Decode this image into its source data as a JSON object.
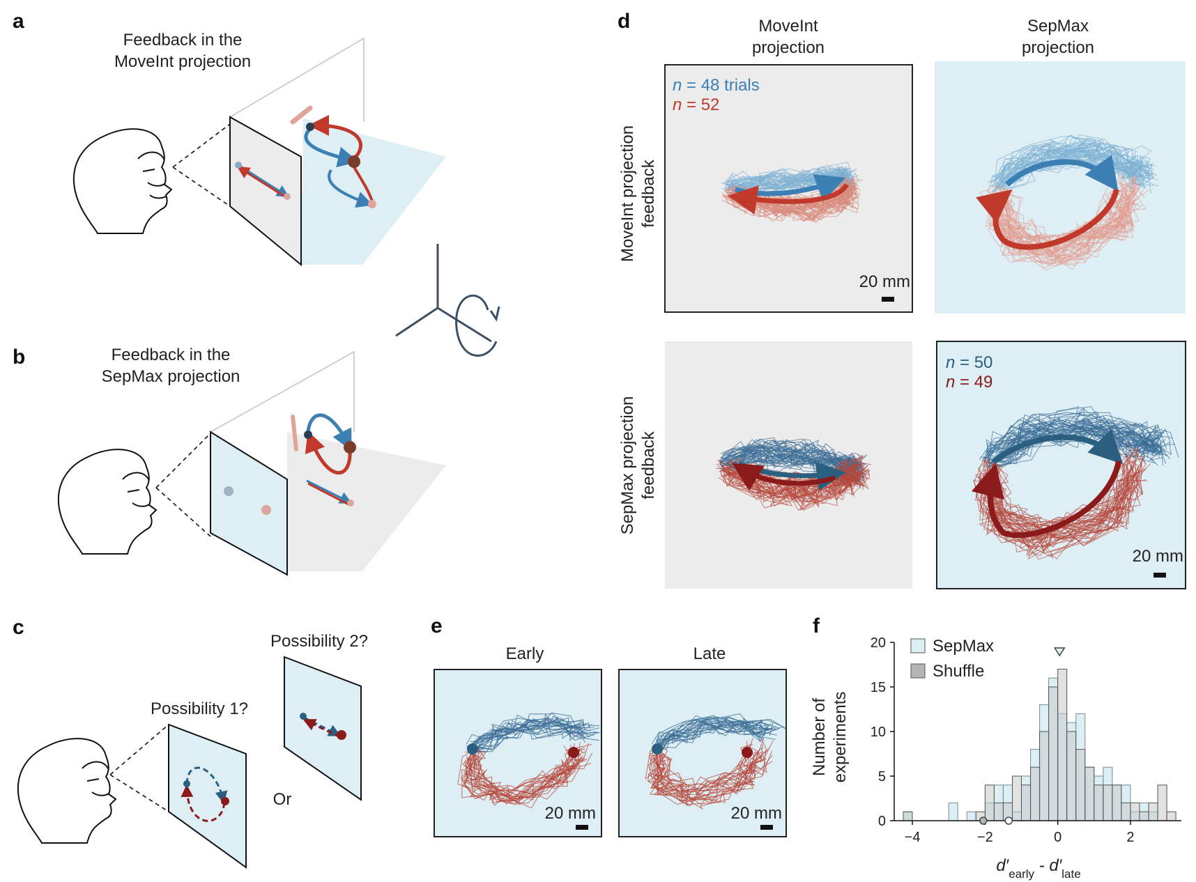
{
  "panels": {
    "a": {
      "label": "a",
      "title_line1": "Feedback in the",
      "title_line2": "MoveInt projection"
    },
    "b": {
      "label": "b",
      "title_line1": "Feedback in the",
      "title_line2": "SepMax projection"
    },
    "c": {
      "label": "c",
      "possibility1": "Possibility 1?",
      "possibility2": "Possibility 2?",
      "or": "Or"
    },
    "d": {
      "label": "d",
      "col1_line1": "MoveInt",
      "col1_line2": "projection",
      "col2_line1": "SepMax",
      "col2_line2": "projection",
      "row1_line1": "MoveInt projection",
      "row1_line2": "feedback",
      "row2_line1": "SepMax projection",
      "row2_line2": "feedback",
      "n_var": "n",
      "top_blue_n": " = 48 trials",
      "top_red_n": " = 52",
      "bottom_blue_n": " = 50",
      "bottom_red_n": " = 49",
      "scale": "20 mm"
    },
    "e": {
      "label": "e",
      "early": "Early",
      "late": "Late",
      "scale": "20 mm"
    },
    "f": {
      "label": "f",
      "ylabel_line1": "Number of",
      "ylabel_line2": "experiments",
      "xlabel_main": "d′",
      "xlabel_sub1": "early",
      "xlabel_minus": " - d′",
      "xlabel_sub2": "late",
      "legend": [
        "SepMax",
        "Shuffle"
      ]
    }
  },
  "colors": {
    "light_blue": "#ddeef4",
    "light_gray": "#ececec",
    "blue": "#3b7fb3",
    "red": "#c0392b",
    "dark_blue": "#2a5f7f",
    "dark_red": "#8b1a1a",
    "sepmax_bar": "#dbeff5",
    "shuffle_bar": "#d3d3d3"
  },
  "chart_data": {
    "type": "bar",
    "xlim": [
      -4.5,
      3.4
    ],
    "ylim": [
      0,
      20
    ],
    "xticks": [
      -4,
      -2,
      0,
      2
    ],
    "xtick_labels": [
      "−4",
      "−2",
      "0",
      "2"
    ],
    "yticks": [
      0,
      5,
      10,
      15,
      20
    ],
    "ytick_labels": [
      "0",
      "5",
      "10",
      "15",
      "20"
    ],
    "bin_width": 0.25,
    "bin_starts": [
      -4.25,
      -4.0,
      -3.75,
      -3.5,
      -3.25,
      -3.0,
      -2.75,
      -2.5,
      -2.25,
      -2.0,
      -1.75,
      -1.5,
      -1.25,
      -1.0,
      -0.75,
      -0.5,
      -0.25,
      0.0,
      0.25,
      0.5,
      0.75,
      1.0,
      1.25,
      1.5,
      1.75,
      2.0,
      2.25,
      2.5,
      2.75,
      3.0
    ],
    "series": [
      {
        "name": "SepMax",
        "values": [
          1,
          0,
          0,
          0,
          0,
          2,
          0,
          1,
          0,
          2,
          4,
          4,
          1,
          5,
          8,
          13,
          16,
          12,
          11,
          12,
          6,
          5,
          6,
          4,
          4,
          1,
          2,
          1,
          0,
          0
        ]
      },
      {
        "name": "Shuffle",
        "values": [
          1,
          0,
          0,
          0,
          0,
          0,
          0,
          0,
          1,
          4,
          2,
          2,
          5,
          4,
          6,
          10,
          15,
          17,
          10,
          8,
          6,
          4,
          4,
          4,
          2,
          2,
          1,
          2,
          4,
          1
        ]
      }
    ],
    "markers": {
      "triangle_x": 0.05,
      "circles_x": [
        -2.05,
        -1.35
      ]
    },
    "legend_position": "top-left"
  }
}
